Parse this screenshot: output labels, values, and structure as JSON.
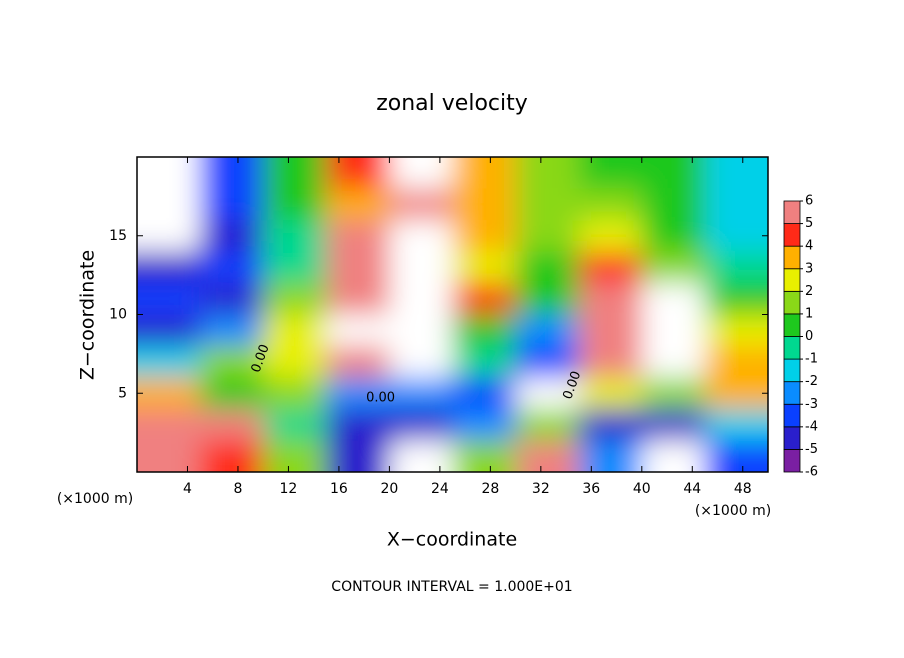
{
  "chart_data": {
    "type": "heatmap",
    "title": "zonal velocity",
    "xlabel": "X−coordinate",
    "ylabel": "Z−coordinate",
    "unit_label": "(×1000 m)",
    "footnote": "CONTOUR INTERVAL = 1.000E+01",
    "xlim": [
      0,
      50
    ],
    "ylim": [
      0,
      20
    ],
    "xticks": [
      4,
      8,
      12,
      16,
      20,
      24,
      28,
      32,
      36,
      40,
      44,
      48
    ],
    "yticks": [
      5,
      10,
      15
    ],
    "x": [
      2.5,
      7.5,
      12.5,
      17.5,
      22.5,
      27.5,
      32.5,
      37.5,
      42.5,
      47.5
    ],
    "y": [
      1,
      3,
      5,
      7,
      9,
      11,
      13,
      15,
      17,
      19
    ],
    "values": [
      [
        6,
        4,
        1,
        -5,
        -7,
        1,
        5,
        -3,
        -8,
        -4
      ],
      [
        5,
        6,
        -1,
        -5,
        -5,
        -3,
        1,
        -5,
        -5,
        -2
      ],
      [
        3,
        0,
        1,
        -3,
        -3,
        -4,
        8,
        2,
        1,
        3
      ],
      [
        -2,
        1,
        2,
        5,
        7,
        -1,
        -4,
        5,
        7,
        3
      ],
      [
        -5,
        -3,
        2,
        7,
        8,
        0,
        -3,
        6,
        8,
        2
      ],
      [
        -4,
        -5,
        1,
        6,
        8,
        4,
        0,
        5,
        8,
        0
      ],
      [
        -5,
        -4,
        -1,
        5,
        8,
        2,
        0,
        4,
        1,
        -1
      ],
      [
        -8,
        -5,
        -1,
        5,
        7,
        3,
        1,
        2,
        0,
        -2
      ],
      [
        -8,
        -4,
        0,
        3,
        5,
        3,
        1,
        1,
        0,
        -2
      ],
      [
        -8,
        -4,
        0,
        4,
        7,
        3,
        1,
        0.5,
        0,
        -2
      ]
    ],
    "annotations": [
      {
        "text": "0.00",
        "x": 9.8,
        "y": 7.2
      },
      {
        "text": "0.00",
        "x": 19.3,
        "y": 4.7
      },
      {
        "text": "0.00",
        "x": 34.5,
        "y": 5.5
      }
    ],
    "colorbar": {
      "ticks": [
        6,
        5,
        4,
        3,
        2,
        1,
        0,
        -1,
        -2,
        -3,
        -4,
        -5,
        -6
      ],
      "colors": [
        "#7a1fa2",
        "#2a1fcc",
        "#0a40ff",
        "#0a8cff",
        "#00d0e8",
        "#00d890",
        "#1ec81e",
        "#8ad818",
        "#e8f000",
        "#ffb000",
        "#ff2a18",
        "#f08080"
      ],
      "out_of_range_color": "#ffffff"
    }
  }
}
